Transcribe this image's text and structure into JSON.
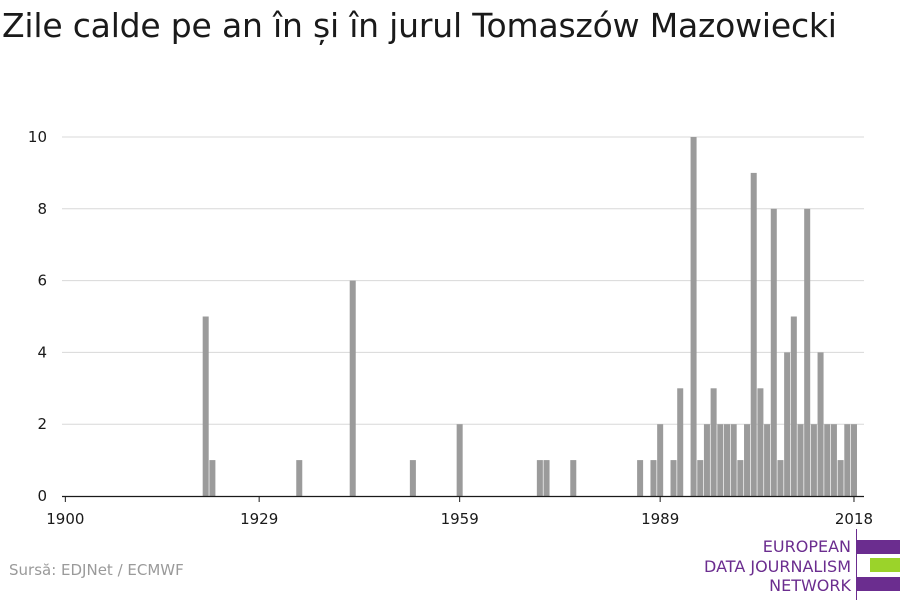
{
  "title": "Zile calde pe an în și în jurul Tomaszów Mazowiecki",
  "source": "Sursă: EDJNet / ECMWF",
  "logo": {
    "lines": [
      "EUROPEAN",
      "DATA JOURNALISM",
      "NETWORK"
    ],
    "colors": {
      "purple": "#6b2d8f",
      "green": "#9bd32a"
    }
  },
  "chart_data": {
    "type": "bar",
    "title": "Zile calde pe an în și în jurul Tomaszów Mazowiecki",
    "xlabel": "",
    "ylabel": "",
    "xlim": [
      1900,
      2019
    ],
    "ylim": [
      0,
      10
    ],
    "x_ticks": [
      "1900",
      "1929",
      "1959",
      "1989",
      "2018"
    ],
    "y_ticks": [
      "0",
      "2",
      "4",
      "6",
      "8",
      "10"
    ],
    "grid": true,
    "bar_color": "#9b9b9b",
    "x": [
      1921,
      1922,
      1935,
      1943,
      1952,
      1959,
      1971,
      1972,
      1976,
      1986,
      1988,
      1989,
      1991,
      1992,
      1994,
      1995,
      1996,
      1997,
      1998,
      1999,
      2000,
      2001,
      2002,
      2003,
      2004,
      2005,
      2006,
      2007,
      2008,
      2009,
      2010,
      2011,
      2012,
      2013,
      2014,
      2015,
      2016,
      2017,
      2018
    ],
    "values": [
      5,
      1,
      1,
      6,
      1,
      2,
      1,
      1,
      1,
      1,
      1,
      2,
      1,
      3,
      10,
      1,
      2,
      3,
      2,
      2,
      2,
      1,
      2,
      9,
      3,
      2,
      8,
      1,
      4,
      5,
      2,
      8,
      2,
      4,
      2,
      2,
      1,
      2,
      2
    ]
  }
}
